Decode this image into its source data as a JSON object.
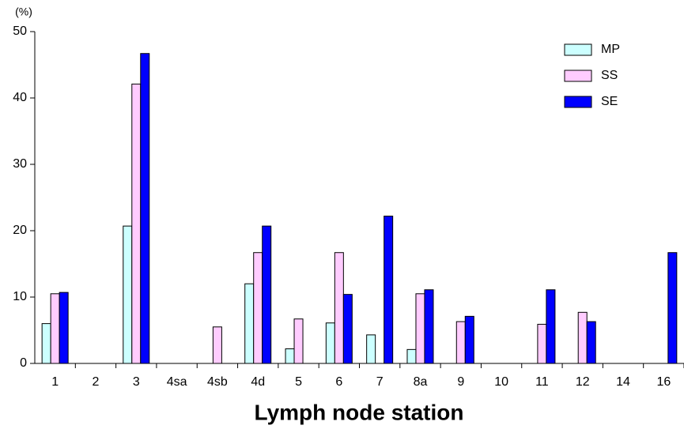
{
  "chart_data": {
    "type": "bar",
    "y_unit": "(%)",
    "x_label": "Lymph node station",
    "categories": [
      "1",
      "2",
      "3",
      "4sa",
      "4sb",
      "4d",
      "5",
      "6",
      "7",
      "8a",
      "9",
      "10",
      "11",
      "12",
      "14",
      "16"
    ],
    "series": [
      {
        "name": "MP",
        "color": "#ccffff",
        "values": [
          6,
          0,
          20.7,
          0,
          0,
          12,
          2.2,
          6.1,
          4.3,
          2.1,
          0,
          0,
          0,
          0,
          0,
          0
        ]
      },
      {
        "name": "SS",
        "color": "#ffccff",
        "values": [
          10.5,
          0,
          42.1,
          0,
          5.5,
          16.7,
          6.7,
          16.7,
          0,
          10.5,
          6.3,
          0,
          5.9,
          7.7,
          0,
          0
        ]
      },
      {
        "name": "SE",
        "color": "#0000ff",
        "values": [
          10.7,
          0,
          46.7,
          0,
          0,
          20.7,
          0,
          10.4,
          22.2,
          11.1,
          7.1,
          0,
          11.1,
          6.3,
          0,
          16.7
        ]
      }
    ],
    "ylim": [
      0,
      50
    ],
    "yticks": [
      0,
      10,
      20,
      30,
      40,
      50
    ],
    "legend": "top-right"
  }
}
